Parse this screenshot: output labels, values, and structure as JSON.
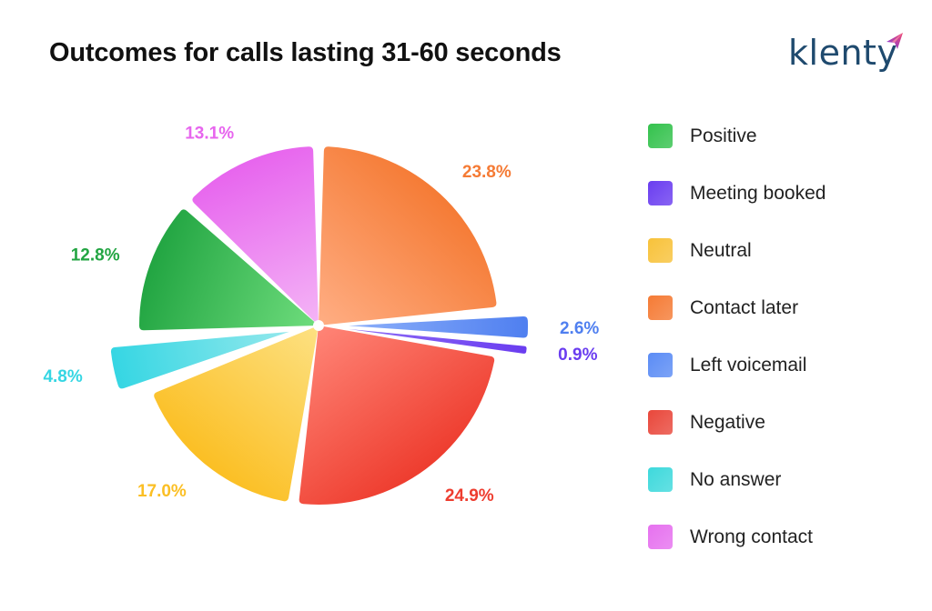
{
  "chart_data": {
    "type": "pie",
    "title": "Outcomes for calls lasting 31-60 seconds",
    "legend_position": "right",
    "slices": [
      {
        "name": "Contact later",
        "value": 23.8,
        "label": "23.8%",
        "color": "#f57b35",
        "color_light": "#ffae84",
        "offset": 0
      },
      {
        "name": "Left voicemail",
        "value": 2.6,
        "label": "2.6%",
        "color": "#4f7ff0",
        "color_light": "#8db0fa",
        "offset": 1
      },
      {
        "name": "Meeting booked",
        "value": 0.9,
        "label": "0.9%",
        "color": "#6a3df0",
        "color_light": "#8e6cf5",
        "offset": 1
      },
      {
        "name": "Negative",
        "value": 24.9,
        "label": "24.9%",
        "color": "#ee3d2f",
        "color_light": "#ff8577",
        "offset": 0
      },
      {
        "name": "Neutral",
        "value": 17.0,
        "label": "17.0%",
        "color": "#fbbf24",
        "color_light": "#fde183",
        "offset": 0
      },
      {
        "name": "No answer",
        "value": 4.8,
        "label": "4.8%",
        "color": "#35d6e3",
        "color_light": "#93e8ec",
        "offset": 1
      },
      {
        "name": "Positive",
        "value": 12.8,
        "label": "12.8%",
        "color": "#22a542",
        "color_light": "#6fdd7d",
        "offset": 0
      },
      {
        "name": "Wrong contact",
        "value": 13.1,
        "label": "13.1%",
        "color": "#e765ee",
        "color_light": "#f4b5f6",
        "offset": 0
      }
    ]
  },
  "legend": [
    {
      "label": "Positive",
      "color": "#34c24d"
    },
    {
      "label": "Meeting booked",
      "color": "#6a3df0"
    },
    {
      "label": "Neutral",
      "color": "#f8c23a"
    },
    {
      "label": "Contact later",
      "color": "#f57b35"
    },
    {
      "label": "Left voicemail",
      "color": "#5b8cf5"
    },
    {
      "label": "Negative",
      "color": "#e9473b"
    },
    {
      "label": "No answer",
      "color": "#3ed9dc"
    },
    {
      "label": "Wrong contact",
      "color": "#e671ef"
    }
  ],
  "logo": {
    "text": "klenty",
    "icon": "paper-plane-icon"
  }
}
